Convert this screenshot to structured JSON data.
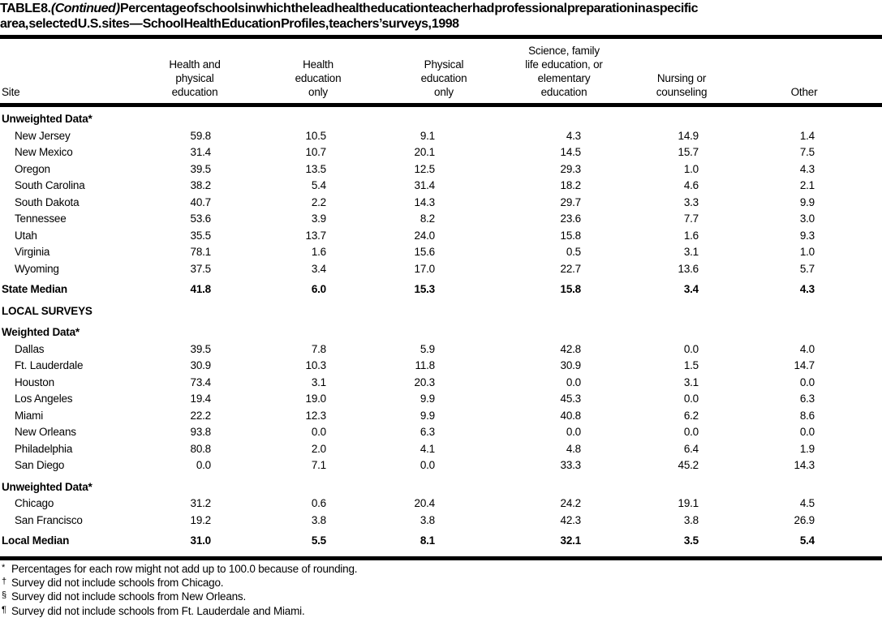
{
  "title": {
    "prefix": "TABLE 8.",
    "continued": "(Continued )",
    "line1_rest": "Percentage of schools in which the lead health education teacher had professional preparation in a specific",
    "line2": "area, selected U.S. sites — School Health Education Profiles, teachers’ surveys, 1998"
  },
  "columns": [
    "Site",
    "Health and\nphysical\neducation",
    "Health\neducation\nonly",
    "Physical\neducation\nonly",
    "Science, family\nlife education, or\nelementary\neducation",
    "Nursing or\ncounseling",
    "Other"
  ],
  "table": {
    "rows": [
      {
        "type": "section",
        "site": "Unweighted Data*"
      },
      {
        "type": "data",
        "site": "New Jersey",
        "values": [
          "59.8",
          "10.5",
          "9.1",
          "4.3",
          "14.9",
          "1.4"
        ]
      },
      {
        "type": "data",
        "site": "New Mexico",
        "values": [
          "31.4",
          "10.7",
          "20.1",
          "14.5",
          "15.7",
          "7.5"
        ]
      },
      {
        "type": "data",
        "site": "Oregon",
        "values": [
          "39.5",
          "13.5",
          "12.5",
          "29.3",
          "1.0",
          "4.3"
        ]
      },
      {
        "type": "data",
        "site": "South Carolina",
        "values": [
          "38.2",
          "5.4",
          "31.4",
          "18.2",
          "4.6",
          "2.1"
        ]
      },
      {
        "type": "data",
        "site": "South Dakota",
        "values": [
          "40.7",
          "2.2",
          "14.3",
          "29.7",
          "3.3",
          "9.9"
        ]
      },
      {
        "type": "data",
        "site": "Tennessee",
        "values": [
          "53.6",
          "3.9",
          "8.2",
          "23.6",
          "7.7",
          "3.0"
        ]
      },
      {
        "type": "data",
        "site": "Utah",
        "values": [
          "35.5",
          "13.7",
          "24.0",
          "15.8",
          "1.6",
          "9.3"
        ]
      },
      {
        "type": "data",
        "site": "Virginia",
        "values": [
          "78.1",
          "1.6",
          "15.6",
          "0.5",
          "3.1",
          "1.0"
        ]
      },
      {
        "type": "data",
        "site": "Wyoming",
        "values": [
          "37.5",
          "3.4",
          "17.0",
          "22.7",
          "13.6",
          "5.7"
        ]
      },
      {
        "type": "median",
        "site": "State Median",
        "values": [
          "41.8",
          "6.0",
          "15.3",
          "15.8",
          "3.4",
          "4.3"
        ]
      },
      {
        "type": "section",
        "site": "LOCAL SURVEYS"
      },
      {
        "type": "section",
        "site": "Weighted Data*"
      },
      {
        "type": "data",
        "site": "Dallas",
        "values": [
          "39.5",
          "7.8",
          "5.9",
          "42.8",
          "0.0",
          "4.0"
        ]
      },
      {
        "type": "data",
        "site": "Ft. Lauderdale",
        "values": [
          "30.9",
          "10.3",
          "11.8",
          "30.9",
          "1.5",
          "14.7"
        ]
      },
      {
        "type": "data",
        "site": "Houston",
        "values": [
          "73.4",
          "3.1",
          "20.3",
          "0.0",
          "3.1",
          "0.0"
        ]
      },
      {
        "type": "data",
        "site": "Los Angeles",
        "values": [
          "19.4",
          "19.0",
          "9.9",
          "45.3",
          "0.0",
          "6.3"
        ]
      },
      {
        "type": "data",
        "site": "Miami",
        "values": [
          "22.2",
          "12.3",
          "9.9",
          "40.8",
          "6.2",
          "8.6"
        ]
      },
      {
        "type": "data",
        "site": "New Orleans",
        "values": [
          "93.8",
          "0.0",
          "6.3",
          "0.0",
          "0.0",
          "0.0"
        ]
      },
      {
        "type": "data",
        "site": "Philadelphia",
        "values": [
          "80.8",
          "2.0",
          "4.1",
          "4.8",
          "6.4",
          "1.9"
        ]
      },
      {
        "type": "data",
        "site": "San Diego",
        "values": [
          "0.0",
          "7.1",
          "0.0",
          "33.3",
          "45.2",
          "14.3"
        ]
      },
      {
        "type": "section",
        "site": "Unweighted Data*"
      },
      {
        "type": "data",
        "site": "Chicago",
        "values": [
          "31.2",
          "0.6",
          "20.4",
          "24.2",
          "19.1",
          "4.5"
        ]
      },
      {
        "type": "data",
        "site": "San Francisco",
        "values": [
          "19.2",
          "3.8",
          "3.8",
          "42.3",
          "3.8",
          "26.9"
        ]
      },
      {
        "type": "median",
        "site": "Local Median",
        "values": [
          "31.0",
          "5.5",
          "8.1",
          "32.1",
          "3.5",
          "5.4"
        ]
      }
    ]
  },
  "footnotes": [
    {
      "marker": "*",
      "text": "Percentages for each row might not add up to 100.0 because of rounding."
    },
    {
      "marker": "†",
      "text": "Survey did not include schools from Chicago."
    },
    {
      "marker": "§",
      "text": "Survey did not include schools from New Orleans."
    },
    {
      "marker": "¶",
      "text": "Survey did not include schools from Ft. Lauderdale and Miami."
    }
  ]
}
